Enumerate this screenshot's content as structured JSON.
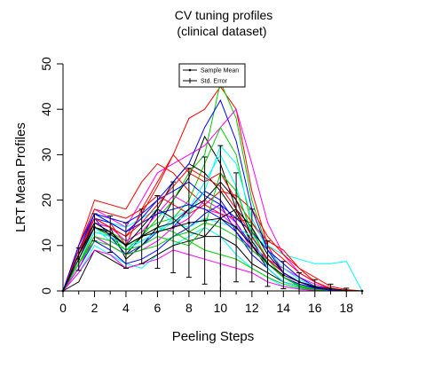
{
  "chart_data": {
    "type": "line",
    "title": "CV tuning profiles",
    "subtitle": "(clinical dataset)",
    "xlabel": "Peeling Steps",
    "ylabel": "LRT Mean Profiles",
    "xlim": [
      0,
      19
    ],
    "ylim": [
      0,
      50
    ],
    "x_ticks": [
      0,
      2,
      4,
      6,
      8,
      10,
      12,
      14,
      16,
      18
    ],
    "y_ticks": [
      0,
      10,
      20,
      30,
      40,
      50
    ],
    "optimal_step": 10,
    "legend": {
      "position": "top-center",
      "entries": [
        {
          "label": "Sample Mean",
          "style": "line-points"
        },
        {
          "label": "Std. Error",
          "style": "errorbar"
        }
      ]
    },
    "steps": [
      0,
      1,
      2,
      3,
      4,
      5,
      6,
      7,
      8,
      9,
      10,
      11,
      12,
      13,
      14,
      15,
      16,
      17,
      18,
      19
    ],
    "colors": [
      "#000000",
      "#ff0000",
      "#00cd00",
      "#0000ff",
      "#00ffff",
      "#ff00ff"
    ],
    "mean_profile": [
      0,
      7,
      14,
      12.5,
      10,
      12,
      13,
      14,
      15,
      15.5,
      16,
      14,
      10,
      6,
      3.5,
      2,
      1,
      0.5,
      0.1,
      0
    ],
    "std_error": [
      0,
      2.5,
      3,
      4,
      5,
      6,
      8,
      10,
      12,
      14,
      16,
      12,
      8,
      5,
      3,
      2,
      1.5,
      1,
      0.5,
      0
    ],
    "series": [
      {
        "values": [
          0,
          9,
          15,
          14,
          7,
          10,
          14,
          20,
          25,
          34,
          28,
          18,
          10,
          5,
          2,
          1,
          0.5,
          0.2,
          0,
          0
        ]
      },
      {
        "values": [
          0,
          8,
          17,
          15,
          10,
          18,
          24,
          30,
          38,
          40,
          45,
          40,
          22,
          10,
          4,
          2,
          1,
          0.5,
          0.1,
          0
        ]
      },
      {
        "values": [
          0,
          7,
          14,
          12,
          9,
          12,
          16,
          20,
          26,
          30,
          46,
          38,
          20,
          9,
          4,
          2,
          1,
          0.3,
          0,
          0
        ]
      },
      {
        "values": [
          0,
          9,
          16,
          12,
          8,
          10,
          13,
          14,
          18,
          22,
          20,
          15,
          10,
          7,
          4,
          2,
          1,
          0.4,
          0,
          0
        ]
      },
      {
        "values": [
          0,
          4,
          10,
          8,
          6,
          5,
          8,
          10,
          12,
          14,
          12,
          8,
          5,
          3,
          1,
          0.5,
          0.2,
          0,
          0,
          0
        ]
      },
      {
        "values": [
          0,
          10,
          18,
          16,
          14,
          20,
          26,
          28,
          30,
          32,
          36,
          40,
          28,
          15,
          8,
          4,
          2,
          0.5,
          0,
          0
        ]
      },
      {
        "values": [
          0,
          6,
          12,
          10,
          8,
          12,
          18,
          24,
          28,
          26,
          22,
          17,
          11,
          6,
          3,
          1.5,
          0.6,
          0.2,
          0,
          0
        ]
      },
      {
        "values": [
          0,
          10,
          20,
          19,
          18,
          24,
          28,
          26,
          22,
          19,
          17,
          16,
          15,
          10,
          7,
          4,
          2,
          0.5,
          0,
          0
        ]
      },
      {
        "values": [
          0,
          8,
          14,
          13,
          11,
          13,
          15,
          16,
          20,
          28,
          36,
          30,
          14,
          6,
          3,
          1,
          0.4,
          0,
          0,
          0
        ]
      },
      {
        "values": [
          0,
          5,
          11,
          9,
          6,
          7,
          9,
          12,
          14,
          17,
          19,
          13,
          8,
          5,
          2,
          1,
          0.3,
          0.1,
          0,
          0
        ]
      },
      {
        "values": [
          0,
          9,
          17,
          15,
          14,
          16,
          18,
          15,
          14,
          16,
          15,
          14,
          12,
          10,
          8,
          7,
          6,
          6,
          6.5,
          0
        ]
      },
      {
        "values": [
          0,
          7,
          15,
          14,
          11,
          13,
          17,
          21,
          19,
          18,
          17,
          14,
          10,
          7,
          5,
          3,
          1.5,
          0.5,
          0,
          0
        ]
      },
      {
        "values": [
          0,
          2,
          9,
          7,
          5,
          6,
          8,
          10,
          11,
          12,
          12,
          10,
          6,
          4,
          2,
          1,
          0.3,
          0,
          0,
          0
        ]
      },
      {
        "values": [
          0,
          8,
          16,
          14,
          12,
          17,
          23,
          30,
          26,
          24,
          26,
          20,
          15,
          11,
          9,
          5,
          2,
          0.6,
          0,
          0
        ]
      },
      {
        "values": [
          0,
          6,
          13,
          12,
          10,
          12,
          14,
          13,
          11,
          9,
          8,
          7,
          5,
          3,
          1.5,
          0.7,
          0.2,
          0,
          0,
          0
        ]
      },
      {
        "values": [
          0,
          9,
          17,
          16,
          15,
          17,
          20,
          22,
          24,
          21,
          19,
          16,
          13,
          9,
          6,
          3,
          1,
          0.3,
          0,
          0
        ]
      },
      {
        "values": [
          0,
          7,
          14,
          11,
          9,
          11,
          13,
          16,
          18,
          24,
          30,
          23,
          12,
          5,
          2,
          1,
          0.5,
          0.2,
          0,
          0
        ]
      },
      {
        "values": [
          0,
          5,
          12,
          10,
          8,
          9,
          11,
          14,
          16,
          20,
          18,
          15,
          9,
          6,
          3,
          1.5,
          0.5,
          0,
          0,
          0
        ]
      },
      {
        "values": [
          0,
          8,
          15,
          13,
          10,
          14,
          18,
          16,
          13,
          12,
          16,
          18,
          14,
          8,
          4,
          2,
          0.8,
          0.2,
          0,
          0
        ]
      },
      {
        "values": [
          0,
          10,
          18,
          17,
          16,
          18,
          21,
          19,
          17,
          19,
          22,
          21,
          18,
          12,
          8,
          5,
          3,
          1,
          0.3,
          0
        ]
      },
      {
        "values": [
          0,
          6,
          12,
          11,
          9,
          10,
          12,
          11,
          10,
          14,
          26,
          22,
          13,
          7,
          3,
          1,
          0.4,
          0,
          0,
          0
        ]
      },
      {
        "values": [
          0,
          9,
          16,
          15,
          13,
          15,
          17,
          18,
          19,
          18,
          16,
          13,
          9,
          6,
          3,
          1.5,
          0.6,
          0.1,
          0,
          0
        ]
      },
      {
        "values": [
          0,
          7,
          13,
          12,
          10,
          11,
          13,
          15,
          17,
          22,
          32,
          28,
          16,
          9,
          5,
          2.5,
          1,
          0.3,
          0,
          0
        ]
      },
      {
        "values": [
          0,
          4,
          9,
          8,
          5,
          6,
          7,
          9,
          8,
          7,
          6,
          5,
          4,
          2,
          1,
          0.4,
          0.1,
          0,
          0,
          0
        ]
      },
      {
        "values": [
          0,
          8,
          14,
          13,
          10,
          12,
          14,
          15,
          18,
          20,
          24,
          20,
          12,
          7,
          4,
          2,
          0.7,
          0.2,
          0,
          0
        ]
      },
      {
        "values": [
          0,
          9,
          16,
          14,
          12,
          15,
          19,
          23,
          27,
          25,
          23,
          18,
          12,
          7,
          4,
          2,
          1,
          0.3,
          0,
          0
        ]
      },
      {
        "values": [
          0,
          6,
          11,
          10,
          8,
          9,
          10,
          12,
          13,
          15,
          14,
          12,
          9,
          6,
          3,
          1.2,
          0.4,
          0,
          0,
          0
        ]
      },
      {
        "values": [
          0,
          10,
          17,
          15,
          13,
          16,
          20,
          24,
          28,
          36,
          42,
          33,
          18,
          9,
          4,
          2,
          0.8,
          0.2,
          0,
          0
        ]
      }
    ]
  }
}
